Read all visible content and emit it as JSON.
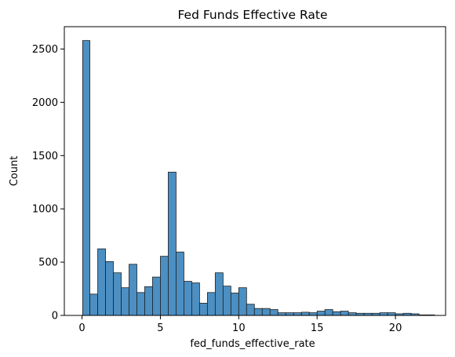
{
  "chart_data": {
    "type": "bar",
    "title": "Fed Funds Effective Rate",
    "xlabel": "fed_funds_effective_rate",
    "ylabel": "Count",
    "xlim": [
      -1.13,
      23.2
    ],
    "ylim": [
      0,
      2710
    ],
    "x_ticks": [
      0,
      5,
      10,
      15,
      20
    ],
    "y_ticks": [
      0,
      500,
      1000,
      1500,
      2000,
      2500
    ],
    "grid": false,
    "legend": "none",
    "bar_color": "#4c8fc2",
    "bar_edge_color": "#1f1f1f",
    "bin_edges": [
      0.04,
      0.5,
      1.0,
      1.5,
      2.0,
      2.5,
      3.0,
      3.5,
      4.0,
      4.5,
      5.0,
      5.5,
      6.0,
      6.5,
      7.0,
      7.5,
      8.0,
      8.5,
      9.0,
      9.5,
      10.0,
      10.5,
      11.0,
      11.5,
      12.0,
      12.5,
      13.0,
      13.5,
      14.0,
      14.5,
      15.0,
      15.5,
      16.0,
      16.5,
      17.0,
      17.5,
      18.0,
      18.5,
      19.0,
      19.5,
      20.0,
      20.5,
      21.0,
      21.5,
      22.0,
      22.5
    ],
    "counts": [
      2580,
      200,
      625,
      505,
      400,
      260,
      480,
      215,
      270,
      360,
      555,
      1345,
      595,
      320,
      305,
      115,
      215,
      400,
      275,
      210,
      260,
      105,
      65,
      65,
      55,
      25,
      25,
      25,
      30,
      25,
      40,
      55,
      35,
      40,
      25,
      20,
      20,
      20,
      25,
      25,
      15,
      20,
      15,
      5,
      5
    ]
  }
}
